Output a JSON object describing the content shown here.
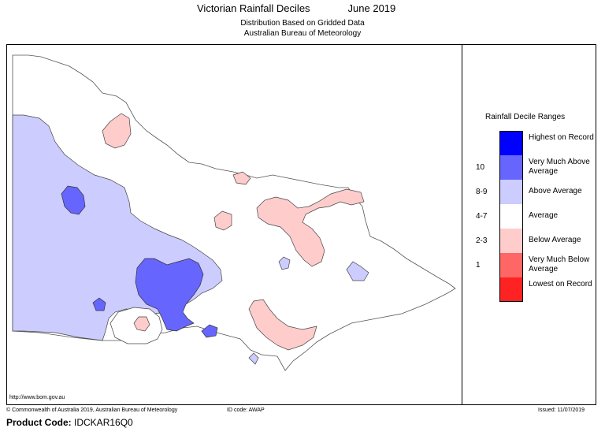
{
  "header": {
    "title": "Victorian Rainfall Deciles",
    "period": "June 2019",
    "subtitle_line1": "Distribution Based on Gridded Data",
    "subtitle_line2": "Australian Bureau of Meteorology"
  },
  "legend": {
    "title": "Rainfall Decile Ranges",
    "items": [
      {
        "decile": "",
        "label": "Highest on Record",
        "color": "#0000ff"
      },
      {
        "decile": "10",
        "label": "Very Much Above Average",
        "color": "#6666ff"
      },
      {
        "decile": "8-9",
        "label": "Above Average",
        "color": "#ccccff"
      },
      {
        "decile": "4-7",
        "label": "Average",
        "color": "#ffffff"
      },
      {
        "decile": "2-3",
        "label": "Below Average",
        "color": "#ffcccc"
      },
      {
        "decile": "1",
        "label": "Very Much Below Average",
        "color": "#ff6666"
      },
      {
        "decile": "",
        "label": "Lowest on Record",
        "color": "#ff2222"
      }
    ]
  },
  "footer": {
    "url": "http://www.bom.gov.au",
    "copyright": "© Commonwealth of Australia 2019, Australian Bureau of Meteorology",
    "id_code": "ID code: AWAP",
    "issued": "Issued: 11/07/2019"
  },
  "product": {
    "label": "Product Code:",
    "code": "IDCKAR16Q0"
  },
  "colors": {
    "above": "#ccccff",
    "very_much_above": "#6666ff",
    "below": "#ffcccc",
    "average": "#ffffff",
    "outline": "#666666"
  }
}
